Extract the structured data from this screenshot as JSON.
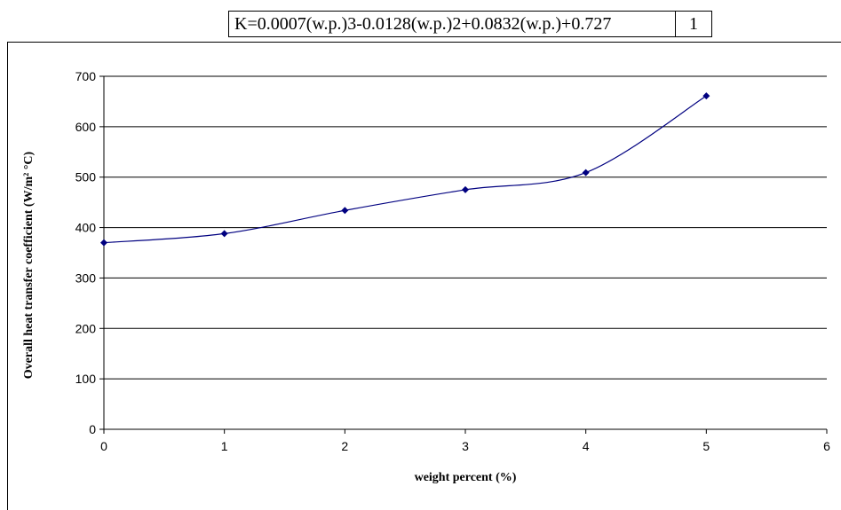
{
  "equation": {
    "text": "K=0.0007(w.p.)3-0.0128(w.p.)2+0.0832(w.p.)+0.727",
    "number": "1"
  },
  "chart_data": {
    "type": "line",
    "x": [
      0,
      1,
      2,
      3,
      4,
      5
    ],
    "series": [
      {
        "values": [
          370,
          388,
          434,
          475,
          509,
          661
        ]
      }
    ],
    "xlabel": "weight percent (%)",
    "ylabel": "Overall heat transfer coefficient (W/m² °C)",
    "xlim": [
      0,
      6
    ],
    "ylim": [
      0,
      700
    ],
    "xticks": [
      0,
      1,
      2,
      3,
      4,
      5,
      6
    ],
    "yticks": [
      0,
      100,
      200,
      300,
      400,
      500,
      600,
      700
    ],
    "grid": true,
    "legend": "none",
    "colors": {
      "series": "#000080",
      "grid": "#000000"
    }
  }
}
